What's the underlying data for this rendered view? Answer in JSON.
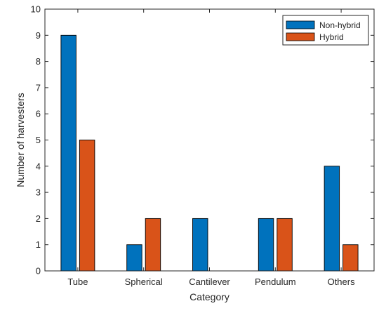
{
  "chart_data": {
    "type": "bar",
    "title": "",
    "xlabel": "Category",
    "ylabel": "Number of harvesters",
    "categories": [
      "Tube",
      "Spherical",
      "Cantilever",
      "Pendulum",
      "Others"
    ],
    "series": [
      {
        "name": "Non-hybrid",
        "color": "#0072BD",
        "values": [
          9,
          1,
          2,
          2,
          4
        ]
      },
      {
        "name": "Hybrid",
        "color": "#D95319",
        "values": [
          5,
          2,
          0,
          2,
          1
        ]
      }
    ],
    "ylim": [
      0,
      10
    ],
    "yticks": [
      0,
      1,
      2,
      3,
      4,
      5,
      6,
      7,
      8,
      9,
      10
    ],
    "grid": false,
    "legend_position": "top-right"
  }
}
